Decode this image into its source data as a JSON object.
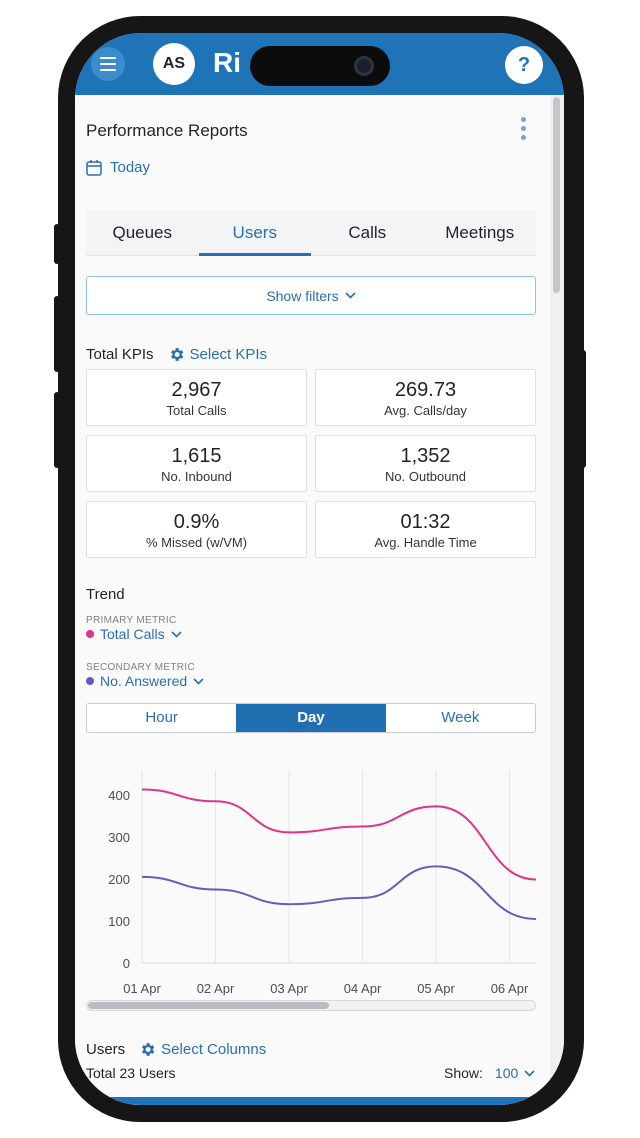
{
  "app": {
    "avatar_initials": "AS",
    "title_fragment": "Ri",
    "help_label": "?"
  },
  "page": {
    "title": "Performance Reports",
    "date_range": "Today"
  },
  "tabs": [
    "Queues",
    "Users",
    "Calls",
    "Meetings"
  ],
  "active_tab": "Users",
  "filters": {
    "label": "Show filters"
  },
  "kpis": {
    "heading": "Total KPIs",
    "select_label": "Select KPIs",
    "items": [
      {
        "value": "2,967",
        "label": "Total Calls"
      },
      {
        "value": "269.73",
        "label": "Avg. Calls/day"
      },
      {
        "value": "1,615",
        "label": "No. Inbound"
      },
      {
        "value": "1,352",
        "label": "No. Outbound"
      },
      {
        "value": "0.9%",
        "label": "% Missed (w/VM)"
      },
      {
        "value": "01:32",
        "label": "Avg. Handle Time"
      }
    ]
  },
  "trend": {
    "title": "Trend",
    "primary_label": "PRIMARY METRIC",
    "primary_value": "Total Calls",
    "secondary_label": "SECONDARY METRIC",
    "secondary_value": "No. Answered",
    "granularity": [
      "Hour",
      "Day",
      "Week"
    ],
    "selected_granularity": "Day"
  },
  "chart_data": {
    "type": "line",
    "categories": [
      "01 Apr",
      "02 Apr",
      "03 Apr",
      "04 Apr",
      "05 Apr",
      "06 Apr"
    ],
    "series": [
      {
        "name": "Total Calls",
        "color": "#e0338a",
        "values": [
          413,
          385,
          311,
          325,
          373,
          245
        ]
      },
      {
        "name": "No. Answered",
        "color": "#6a5bb8",
        "values": [
          205,
          175,
          140,
          155,
          230,
          138
        ]
      }
    ],
    "yticks": [
      0,
      100,
      200,
      300,
      400
    ],
    "ylim": [
      0,
      450
    ],
    "grid": "vertical"
  },
  "users": {
    "heading": "Users",
    "select_label": "Select Columns",
    "total": "Total 23 Users",
    "show_label": "Show:",
    "show_value": "100"
  },
  "colors": {
    "brand": "#1f74b8",
    "accent": "#2a6fb0",
    "primary_series": "#e0338a",
    "secondary_series": "#6a5bb8"
  }
}
